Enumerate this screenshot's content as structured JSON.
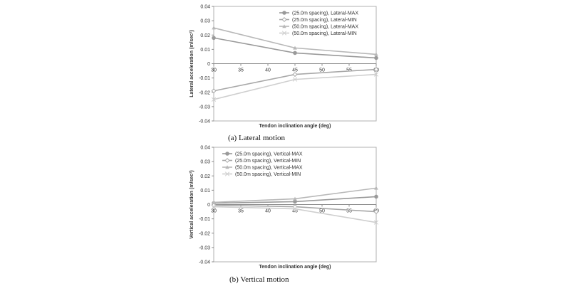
{
  "chart_data": [
    {
      "type": "line",
      "caption": "(a)  Lateral  motion",
      "xlabel": "Tendon inclination angle (deg)",
      "ylabel": "Lateral acceleration (m/sec²)",
      "xlim": [
        30,
        60
      ],
      "ylim": [
        -0.04,
        0.04
      ],
      "xticks": [
        "30",
        "35",
        "40",
        "45",
        "50",
        "55",
        "60"
      ],
      "yticks": [
        "-0.04",
        "-0.03",
        "-0.02",
        "-0.01",
        "0",
        "0.01",
        "0.02",
        "0.03",
        "0.04"
      ],
      "grid": false,
      "legend_position": "top-right",
      "x": [
        30,
        45,
        60
      ],
      "series": [
        {
          "name": "(25.0m spacing), Lateral-MAX",
          "values": [
            0.018,
            0.0075,
            0.004
          ],
          "marker": "circle",
          "color": "#9a9a9a"
        },
        {
          "name": "(25.0m spacing), Lateral-MIN",
          "values": [
            -0.019,
            -0.0075,
            -0.004
          ],
          "marker": "diamond",
          "color": "#a8a8a8"
        },
        {
          "name": "(50.0m spacing), Lateral-MAX",
          "values": [
            0.025,
            0.011,
            0.0065
          ],
          "marker": "triangle",
          "color": "#b8b8b8"
        },
        {
          "name": "(50.0m spacing), Lateral-MIN",
          "values": [
            -0.025,
            -0.011,
            -0.0075
          ],
          "marker": "cross",
          "color": "#cfcfcf"
        }
      ]
    },
    {
      "type": "line",
      "caption": "(b)  Vertical  motion",
      "xlabel": "Tendon inclination angle (deg)",
      "ylabel": "Vertical acceleration (m/sec²)",
      "xlim": [
        30,
        60
      ],
      "ylim": [
        -0.04,
        0.04
      ],
      "xticks": [
        "30",
        "35",
        "40",
        "45",
        "50",
        "55",
        "60"
      ],
      "yticks": [
        "-0.04",
        "-0.03",
        "-0.02",
        "-0.01",
        "0",
        "0.01",
        "0.02",
        "0.03",
        "0.04"
      ],
      "grid": false,
      "legend_position": "top-left",
      "x": [
        30,
        45,
        60
      ],
      "series": [
        {
          "name": "(25.0m spacing), Vertical-MAX",
          "values": [
            0.001,
            0.002,
            0.0055
          ],
          "marker": "circle",
          "color": "#9a9a9a"
        },
        {
          "name": "(25.0m spacing), Vertical-MIN",
          "values": [
            -0.0005,
            -0.0015,
            -0.005
          ],
          "marker": "diamond",
          "color": "#a8a8a8"
        },
        {
          "name": "(50.0m spacing), Vertical-MAX",
          "values": [
            0.0015,
            0.004,
            0.0115
          ],
          "marker": "triangle",
          "color": "#b8b8b8"
        },
        {
          "name": "(50.0m spacing), Vertical-MIN",
          "values": [
            -0.0015,
            -0.003,
            -0.0125
          ],
          "marker": "cross",
          "color": "#cfcfcf"
        }
      ]
    }
  ]
}
